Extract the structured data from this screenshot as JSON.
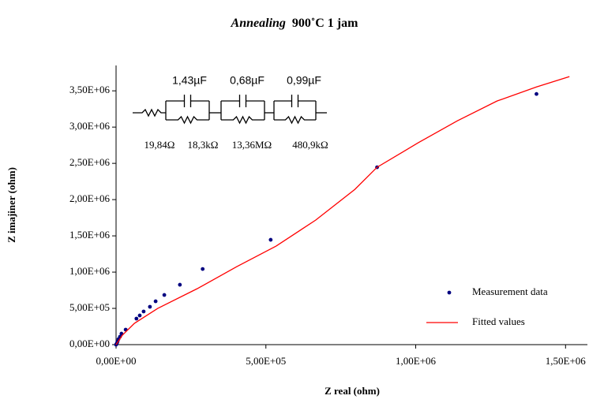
{
  "chart_data": {
    "type": "scatter",
    "title": [
      "Annealing",
      "900˚C 1 jam"
    ],
    "x_label": "Z real (ohm)",
    "y_label": "Z imajiner (ohm)",
    "xlim": [
      0,
      1573000
    ],
    "ylim": [
      0,
      3850000
    ],
    "xticks": [
      {
        "value": 0,
        "label": "0,00E+00"
      },
      {
        "value": 500000,
        "label": "5,00E+05"
      },
      {
        "value": 1000000,
        "label": "1,00E+06"
      },
      {
        "value": 1500000,
        "label": "1,50E+06"
      }
    ],
    "yticks": [
      {
        "value": 0,
        "label": "0,00E+00"
      },
      {
        "value": 500000,
        "label": "5,00E+05"
      },
      {
        "value": 1000000,
        "label": "1,00E+06"
      },
      {
        "value": 1500000,
        "label": "1,50E+06"
      },
      {
        "value": 2000000,
        "label": "2,00E+06"
      },
      {
        "value": 2500000,
        "label": "2,50E+06"
      },
      {
        "value": 3000000,
        "label": "3,00E+06"
      },
      {
        "value": 3500000,
        "label": "3,50E+06"
      }
    ],
    "grid": false,
    "legend": "lower right",
    "series": [
      {
        "name": "Measurement data",
        "type": "scatter",
        "color": "#000080",
        "x": [
          1403000,
          871000,
          516000,
          289000,
          213000,
          161000,
          132000,
          113000,
          92000,
          79000,
          68000,
          32000,
          18000,
          13000,
          8000,
          5000,
          3000,
          0
        ],
        "values": [
          3457000,
          2446000,
          1446000,
          1043000,
          826000,
          685000,
          598000,
          522000,
          457000,
          402000,
          359000,
          207000,
          152000,
          109000,
          76000,
          43000,
          22000,
          0
        ]
      },
      {
        "name": "Fitted values",
        "type": "line",
        "color": "#ff0000",
        "x": [
          0,
          21000,
          61000,
          139000,
          271000,
          403000,
          534000,
          666000,
          797000,
          871000,
          1008000,
          1139000,
          1271000,
          1403000,
          1513000
        ],
        "values": [
          0,
          130000,
          293000,
          500000,
          772000,
          1076000,
          1359000,
          1717000,
          2141000,
          2446000,
          2783000,
          3087000,
          3359000,
          3554000,
          3696000
        ]
      }
    ],
    "circuit": {
      "capacitors": [
        "1,43µF",
        "0,68µF",
        "0,99µF"
      ],
      "resistors": [
        "19,84Ω",
        "18,3kΩ",
        "13,36MΩ",
        "480,9kΩ"
      ]
    }
  }
}
